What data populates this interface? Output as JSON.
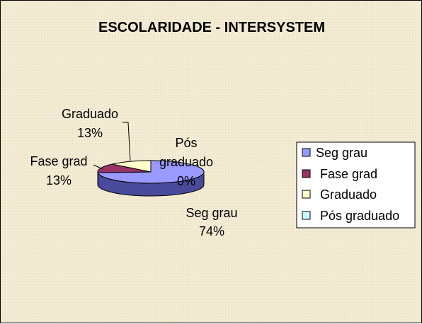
{
  "chart_data": {
    "type": "pie",
    "title": "ESCOLARIDADE - INTERSYSTEM",
    "categories": [
      "Seg grau",
      "Fase grad",
      "Graduado",
      "Pós graduado"
    ],
    "values": [
      74,
      13,
      13,
      0
    ],
    "data_labels": [
      {
        "name": "Seg grau",
        "value": "74%"
      },
      {
        "name": "Fase grad",
        "value": "13%"
      },
      {
        "name": "Graduado",
        "value": "13%"
      },
      {
        "name_lines": [
          "Pós",
          "graduado"
        ],
        "value": "0%"
      }
    ],
    "colors": [
      "#9999ff",
      "#993366",
      "#ffffcc",
      "#ccffff"
    ],
    "side_colors": [
      "#4a4a9c",
      "#5c1f3d",
      "#b8b88c",
      "#8cb8b8"
    ],
    "legend_position": "right",
    "three_d": true
  }
}
